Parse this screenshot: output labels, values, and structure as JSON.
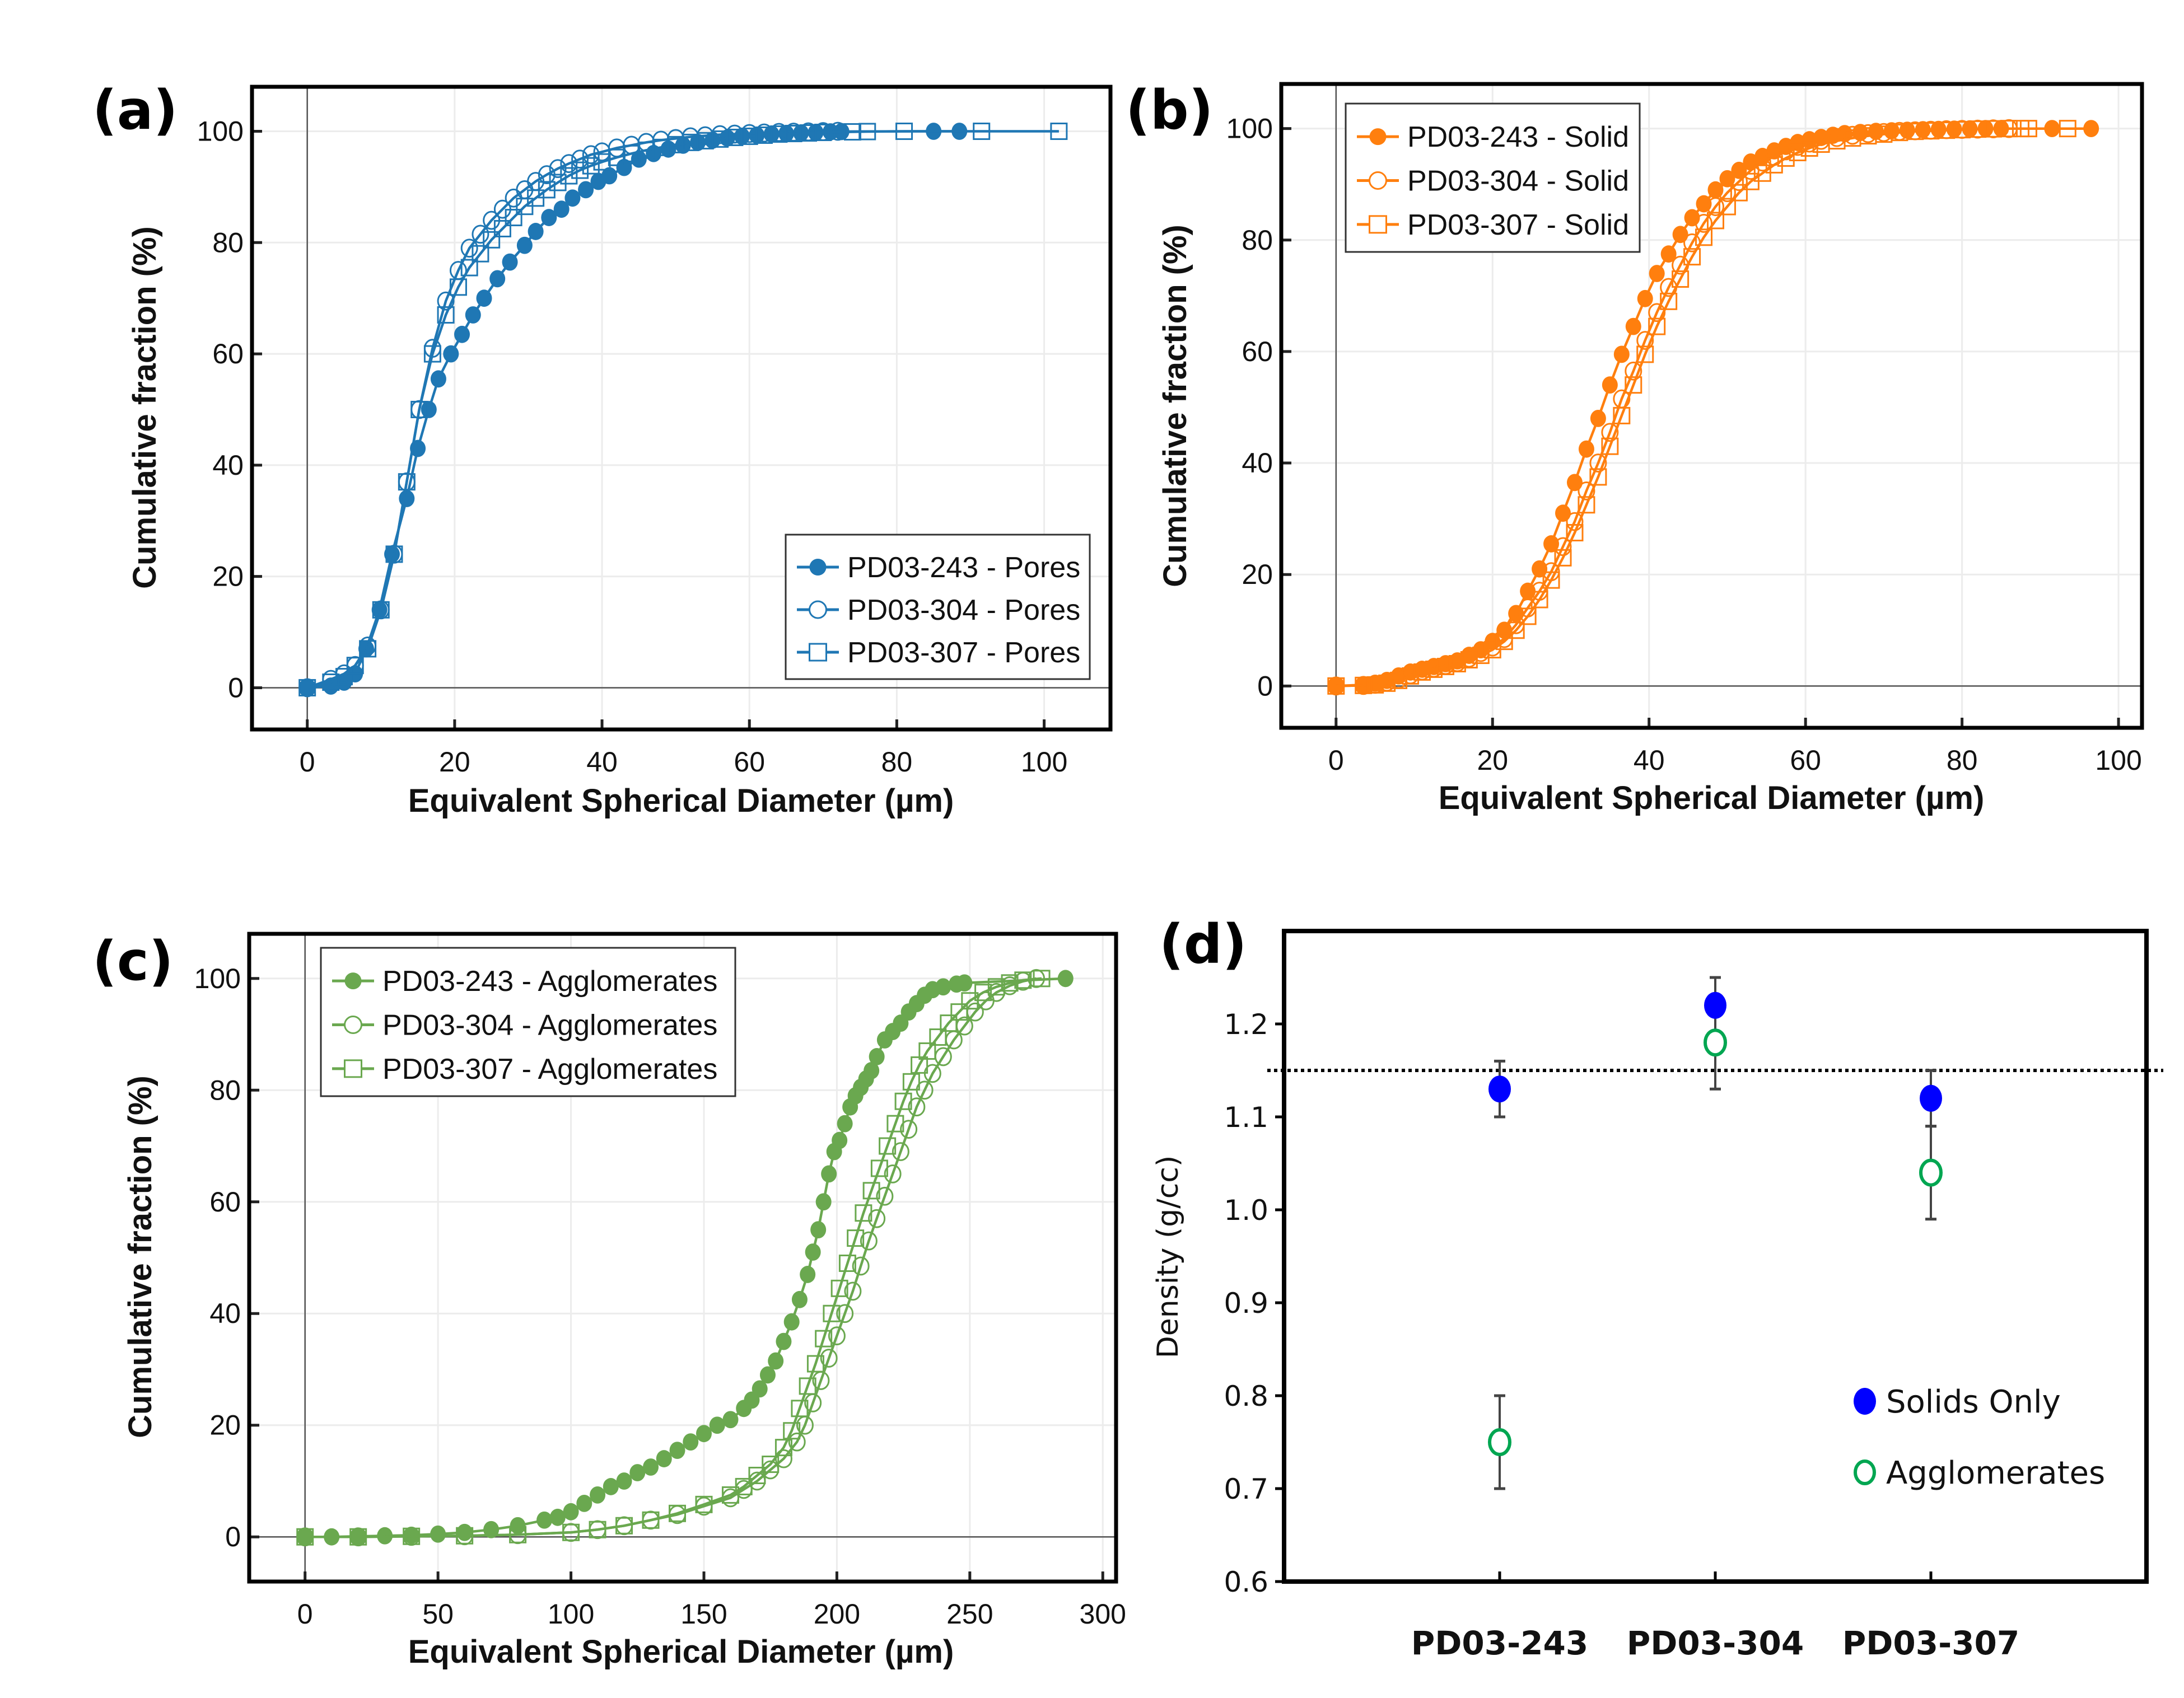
{
  "chart_data": [
    {
      "id": "a",
      "panel_label": "(a)",
      "type": "line",
      "xlabel": "Equivalent Spherical Diameter (µm)",
      "ylabel": "Cumulative fraction (%)",
      "xlim": [
        -7.5,
        109
      ],
      "ylim": [
        -7.5,
        108
      ],
      "xticks": [
        0,
        20,
        40,
        60,
        80,
        100
      ],
      "yticks": [
        0,
        20,
        40,
        60,
        80,
        100
      ],
      "grid": true,
      "legend_position": "bottom-right",
      "color": "#1f77b4",
      "series": [
        {
          "name": "PD03-243 - Pores",
          "marker": "filled-circle",
          "x": [
            0,
            3.2,
            5,
            6.5,
            8,
            9.8,
            11.5,
            13.5,
            15,
            16.5,
            17.8,
            19.5,
            21,
            22.5,
            24,
            25.8,
            27.5,
            29.5,
            31,
            32.8,
            34.5,
            36,
            37.8,
            39.5,
            41,
            43,
            45,
            47,
            49,
            51,
            53,
            55,
            57,
            59,
            61,
            63,
            65,
            67,
            69,
            71,
            72.5,
            85,
            88.5
          ],
          "y": [
            0,
            0.3,
            1,
            2.5,
            7,
            14,
            24,
            34,
            43,
            50,
            55.5,
            60,
            63.5,
            67,
            70,
            73.5,
            76.5,
            79.5,
            82,
            84.5,
            86,
            88,
            89.5,
            91,
            92,
            93.5,
            95,
            96,
            96.8,
            97.5,
            98,
            98.4,
            98.8,
            99.1,
            99.3,
            99.5,
            99.6,
            99.7,
            99.8,
            99.9,
            99.95,
            100,
            100
          ]
        },
        {
          "name": "PD03-304 - Pores",
          "marker": "open-circle",
          "x": [
            0,
            3.2,
            5,
            6.5,
            8.2,
            10,
            11.8,
            13.5,
            15.2,
            17,
            18.8,
            20.5,
            22,
            23.5,
            25,
            26.5,
            28,
            29.5,
            31,
            32.5,
            34,
            35.5,
            37,
            38.5,
            40,
            42,
            44,
            46,
            48,
            50,
            52,
            54,
            56,
            58,
            60,
            62,
            64,
            66,
            68,
            70,
            72
          ],
          "y": [
            0,
            1.5,
            2.5,
            4,
            7.5,
            14,
            24,
            37,
            50,
            61,
            69.5,
            75,
            79,
            81.5,
            84,
            86,
            88,
            89.5,
            91,
            92.2,
            93.3,
            94.2,
            95,
            95.8,
            96.3,
            97,
            97.5,
            98,
            98.4,
            98.7,
            99,
            99.2,
            99.4,
            99.5,
            99.6,
            99.7,
            99.8,
            99.85,
            99.9,
            99.95,
            100
          ]
        },
        {
          "name": "PD03-307 - Pores",
          "marker": "open-square",
          "x": [
            0,
            3.2,
            5,
            6.5,
            8.2,
            10,
            11.8,
            13.5,
            15.2,
            17,
            18.8,
            20.5,
            22,
            23.5,
            25,
            26.5,
            28,
            29.5,
            31,
            32.5,
            34,
            35.5,
            37,
            38.5,
            40,
            42,
            44,
            46,
            48,
            50,
            52,
            54,
            56,
            58,
            60,
            62,
            64,
            66,
            68,
            70,
            74,
            76,
            81,
            91.5,
            102
          ],
          "y": [
            0,
            1,
            2,
            4,
            7,
            14,
            24,
            37,
            50,
            60,
            67,
            72,
            75.5,
            78,
            80.5,
            82.5,
            84.5,
            86.5,
            88,
            89.5,
            90.8,
            92,
            93,
            93.8,
            94.5,
            95.3,
            96,
            96.6,
            97.1,
            97.6,
            98,
            98.3,
            98.6,
            98.9,
            99.1,
            99.3,
            99.5,
            99.6,
            99.7,
            99.8,
            99.9,
            99.95,
            100,
            100,
            100
          ]
        }
      ]
    },
    {
      "id": "b",
      "panel_label": "(b)",
      "type": "line",
      "xlabel": "Equivalent Spherical Diameter (µm)",
      "ylabel": "Cumulative fraction (%)",
      "xlim": [
        -7,
        103
      ],
      "ylim": [
        -7.5,
        108
      ],
      "xticks": [
        0,
        20,
        40,
        60,
        80,
        100
      ],
      "yticks": [
        0,
        20,
        40,
        60,
        80,
        100
      ],
      "grid": true,
      "legend_position": "top-left",
      "color": "#ff7f0e",
      "series": [
        {
          "name": "PD03-243 - Solid",
          "marker": "filled-circle",
          "x": [
            0,
            3.5,
            5,
            6.5,
            8,
            9.5,
            11,
            12.5,
            14,
            15.5,
            17,
            18.5,
            20,
            21.5,
            23,
            24.5,
            26,
            27.5,
            29,
            30.5,
            32,
            33.5,
            35,
            36.5,
            38,
            39.5,
            41,
            42.5,
            44,
            45.5,
            47,
            48.5,
            50,
            51.5,
            53,
            54.5,
            56,
            57.5,
            59,
            60.5,
            62,
            63.5,
            65,
            67,
            69,
            71,
            73,
            75,
            77,
            79,
            81,
            83,
            85,
            91.5,
            96.5
          ],
          "y": [
            0,
            0.2,
            0.5,
            1,
            1.8,
            2.5,
            3,
            3.5,
            4,
            4.5,
            5.5,
            6.5,
            8,
            10,
            13,
            17,
            21,
            25.5,
            31,
            36.5,
            42.5,
            48,
            54,
            59.5,
            64.5,
            69.5,
            74,
            77.5,
            81,
            84,
            86.5,
            89,
            91,
            92.5,
            94,
            95,
            96,
            96.8,
            97.5,
            98,
            98.4,
            98.8,
            99.1,
            99.3,
            99.5,
            99.6,
            99.7,
            99.8,
            99.85,
            99.9,
            99.95,
            100,
            100,
            100,
            100
          ]
        },
        {
          "name": "PD03-304 - Solid",
          "marker": "open-circle",
          "x": [
            0,
            3.5,
            5,
            6.5,
            8,
            9.5,
            11,
            12.5,
            14,
            15.5,
            17,
            18.5,
            20,
            21.5,
            23,
            24.5,
            26,
            27.5,
            29,
            30.5,
            32,
            33.5,
            35,
            36.5,
            38,
            39.5,
            41,
            42.5,
            44,
            45.5,
            47,
            48.5,
            50,
            51.5,
            53,
            54.5,
            56,
            57.5,
            59,
            60.5,
            62,
            64,
            66,
            68,
            70,
            72,
            74,
            76,
            78,
            80,
            82,
            84,
            86
          ],
          "y": [
            0,
            0.1,
            0.3,
            0.7,
            1.2,
            2,
            2.7,
            3.2,
            3.7,
            4.2,
            5,
            6,
            7,
            8.5,
            11,
            14,
            17,
            20.5,
            25,
            29.5,
            35,
            40,
            45.5,
            51.5,
            56.5,
            62,
            67,
            71.5,
            75.5,
            79.5,
            83,
            86,
            88.5,
            90.5,
            92.5,
            94,
            95,
            96,
            96.8,
            97.4,
            97.9,
            98.4,
            98.8,
            99.1,
            99.3,
            99.5,
            99.6,
            99.7,
            99.8,
            99.85,
            99.9,
            99.95,
            100
          ]
        },
        {
          "name": "PD03-307 - Solid",
          "marker": "open-square",
          "x": [
            0,
            3.5,
            5,
            6.5,
            8,
            9.5,
            11,
            12.5,
            14,
            15.5,
            17,
            18.5,
            20,
            21.5,
            23,
            24.5,
            26,
            27.5,
            29,
            30.5,
            32,
            33.5,
            35,
            36.5,
            38,
            39.5,
            41,
            42.5,
            44,
            45.5,
            47,
            48.5,
            50,
            51.5,
            53,
            54.5,
            56,
            57.5,
            59,
            60.5,
            62,
            64,
            66,
            68,
            70,
            72,
            74,
            76,
            78,
            80,
            82,
            84,
            86,
            87.5,
            88.5,
            93.5
          ],
          "y": [
            0,
            0.1,
            0.2,
            0.5,
            1,
            1.8,
            2.5,
            3,
            3.5,
            4,
            4.7,
            5.5,
            6.5,
            8,
            10,
            12.5,
            15.5,
            19,
            23,
            27.5,
            32.5,
            37.5,
            43,
            48.5,
            54,
            59.5,
            64.5,
            69,
            73,
            77,
            80.5,
            83.5,
            86,
            88.5,
            90.5,
            92,
            93.5,
            94.7,
            95.7,
            96.5,
            97.2,
            97.8,
            98.3,
            98.7,
            99,
            99.3,
            99.5,
            99.6,
            99.7,
            99.8,
            99.9,
            99.95,
            100,
            100,
            100,
            100
          ]
        }
      ]
    },
    {
      "id": "c",
      "panel_label": "(c)",
      "type": "line",
      "xlabel": "Equivalent Spherical Diameter (µm)",
      "ylabel": "Cumulative fraction (%)",
      "xlim": [
        -21,
        305
      ],
      "ylim": [
        -8,
        108
      ],
      "xticks": [
        0,
        50,
        100,
        150,
        200,
        250,
        300
      ],
      "yticks": [
        0,
        20,
        40,
        60,
        80,
        100
      ],
      "grid": true,
      "legend_position": "top-left",
      "color": "#6aa84f",
      "series": [
        {
          "name": "PD03-243 - Agglomerates",
          "marker": "filled-circle",
          "x": [
            0,
            10,
            20,
            30,
            40,
            50,
            60,
            70,
            80,
            90,
            95,
            100,
            105,
            110,
            115,
            120,
            125,
            130,
            135,
            140,
            145,
            150,
            155,
            160,
            165,
            168,
            171,
            174,
            177,
            180,
            183,
            186,
            189,
            191,
            193,
            195,
            197,
            199,
            201,
            203,
            205,
            207,
            209,
            211,
            213,
            215,
            218,
            221,
            224,
            227,
            230,
            233,
            236,
            240,
            245,
            248,
            286
          ],
          "y": [
            0,
            0,
            0.1,
            0.2,
            0.3,
            0.5,
            0.8,
            1.3,
            2,
            3,
            3.5,
            4.5,
            6,
            7.5,
            9,
            10,
            11.5,
            12.5,
            14,
            15.5,
            17,
            18.5,
            20,
            21,
            23,
            24.5,
            26.5,
            29,
            31.5,
            35,
            38.5,
            42.5,
            47,
            51,
            55,
            60,
            65,
            69,
            71,
            74,
            77,
            79,
            80.5,
            82,
            83.5,
            86,
            89,
            90.5,
            92,
            94,
            95.5,
            97,
            98,
            98.5,
            99,
            99.2,
            100
          ]
        },
        {
          "name": "PD03-304 - Agglomerates",
          "marker": "open-circle",
          "x": [
            0,
            20,
            40,
            60,
            80,
            100,
            110,
            120,
            130,
            140,
            150,
            160,
            165,
            170,
            175,
            180,
            185,
            188,
            191,
            194,
            197,
            200,
            203,
            206,
            209,
            212,
            215,
            218,
            221,
            224,
            227,
            230,
            233,
            236,
            240,
            244,
            248,
            252,
            256,
            260,
            265,
            270,
            275
          ],
          "y": [
            0,
            0,
            0.1,
            0.2,
            0.4,
            0.8,
            1.3,
            2,
            3,
            4,
            5.5,
            7,
            8.5,
            10,
            12,
            14,
            17,
            20,
            24,
            28,
            32,
            36,
            40,
            44,
            48.5,
            53,
            57,
            61,
            65,
            69,
            73,
            77,
            80,
            83,
            86,
            89,
            91.5,
            94,
            96,
            97.5,
            98.7,
            99.5,
            100
          ]
        },
        {
          "name": "PD03-307 - Agglomerates",
          "marker": "open-square",
          "x": [
            0,
            20,
            40,
            60,
            80,
            100,
            110,
            120,
            130,
            140,
            150,
            160,
            165,
            170,
            175,
            180,
            183,
            186,
            189,
            192,
            195,
            198,
            201,
            204,
            207,
            210,
            213,
            216,
            219,
            222,
            225,
            228,
            231,
            234,
            238,
            242,
            246,
            250,
            255,
            260,
            265,
            270,
            277
          ],
          "y": [
            0,
            0,
            0.1,
            0.2,
            0.4,
            0.8,
            1.3,
            2,
            3,
            4.2,
            5.8,
            7.5,
            9,
            11,
            13,
            16,
            19,
            23,
            27,
            31,
            35.5,
            40,
            44.5,
            49,
            53.5,
            58,
            62,
            66,
            70,
            74,
            78,
            81.5,
            84.5,
            87,
            89.5,
            92,
            94,
            96,
            97.5,
            98.5,
            99.2,
            99.7,
            100
          ]
        }
      ]
    },
    {
      "id": "d",
      "panel_label": "(d)",
      "type": "scatter",
      "xlabel": "",
      "ylabel": "Density (g/cc)",
      "categories": [
        "PD03-243",
        "PD03-304",
        "PD03-307"
      ],
      "ylim": [
        0.6,
        1.3
      ],
      "yticks": [
        "0.6",
        "0.7",
        "0.8",
        "0.9",
        "1.0",
        "1.1",
        "1.2"
      ],
      "grid": false,
      "legend_position": "bottom-right",
      "reference_line": {
        "y": 1.15,
        "style": "dotted"
      },
      "series": [
        {
          "name": "Solids Only",
          "marker": "filled-circle",
          "color": "#0000ff",
          "values": [
            1.13,
            1.22,
            1.12
          ],
          "error_low": [
            1.1,
            null,
            null
          ],
          "error_high": [
            1.16,
            null,
            null
          ]
        },
        {
          "name": "Agglomerates",
          "marker": "open-circle",
          "color": "#00a651",
          "values": [
            0.75,
            1.18,
            1.04
          ],
          "error_low": [
            0.7,
            1.13,
            0.99
          ],
          "error_high": [
            0.8,
            1.25,
            1.09
          ]
        }
      ],
      "extra_error_bars": [
        {
          "category": "PD03-307",
          "low": 1.09,
          "high": 1.15
        }
      ]
    }
  ]
}
